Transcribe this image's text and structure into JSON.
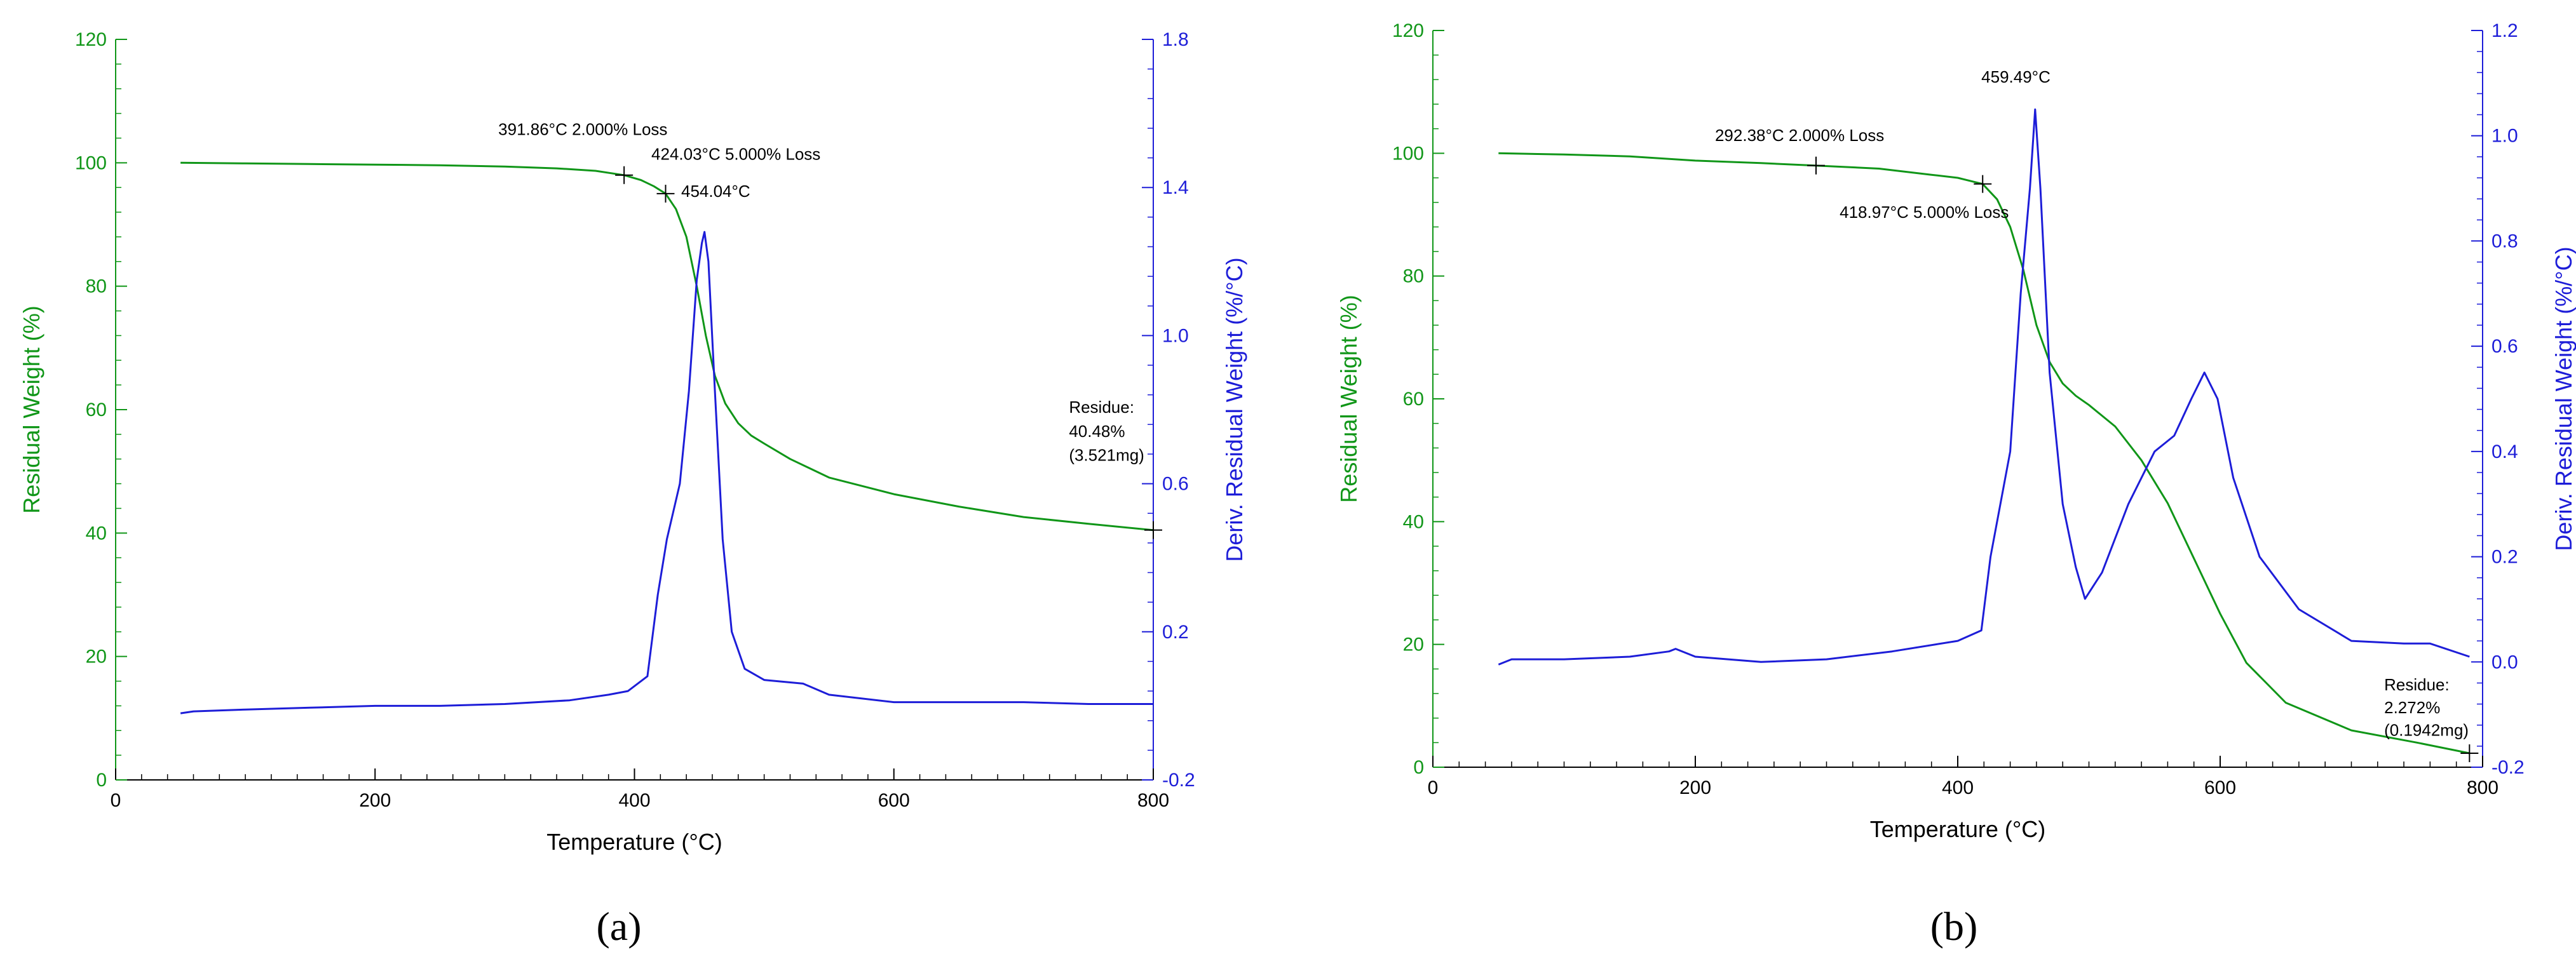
{
  "colors": {
    "weight": "#109618",
    "deriv": "#1d1dd8",
    "axis_text": "#000000"
  },
  "chart_data": [
    {
      "type": "line",
      "panel_label": "(a)",
      "xlabel": "Temperature (°C)",
      "ylabel": "Residual Weight (%)",
      "y2label": "Deriv. Residual Weight (%/°C)",
      "xlim": [
        0,
        800
      ],
      "ylim": [
        0,
        120
      ],
      "y2lim": [
        -0.2,
        1.8
      ],
      "xticks": [
        "0",
        "200",
        "400",
        "600",
        "800"
      ],
      "yticks": [
        "0",
        "20",
        "40",
        "60",
        "80",
        "100",
        "120"
      ],
      "y2ticks": [
        "-0.2",
        "0.2",
        "0.6",
        "1.0",
        "1.4",
        "1.8"
      ],
      "series": [
        {
          "axis": "left",
          "color": "#109618",
          "x": [
            50,
            100,
            150,
            200,
            250,
            300,
            340,
            370,
            392,
            405,
            415,
            424,
            432,
            440,
            448,
            455,
            462,
            470,
            480,
            490,
            500,
            520,
            550,
            600,
            650,
            700,
            750,
            800
          ],
          "y": [
            100,
            99.9,
            99.8,
            99.7,
            99.6,
            99.4,
            99.1,
            98.7,
            98.0,
            97.2,
            96.2,
            95.0,
            92.5,
            88.0,
            80.0,
            72.0,
            65.5,
            61.0,
            57.8,
            55.8,
            54.5,
            52.0,
            49.0,
            46.3,
            44.3,
            42.6,
            41.5,
            40.48
          ]
        },
        {
          "axis": "right",
          "color": "#1d1dd8",
          "x": [
            50,
            60,
            100,
            150,
            200,
            250,
            300,
            350,
            380,
            395,
            410,
            418,
            425,
            435,
            442,
            448,
            452,
            454,
            457,
            462,
            468,
            475,
            485,
            500,
            515,
            530,
            550,
            600,
            650,
            700,
            750,
            800
          ],
          "y": [
            -0.02,
            -0.015,
            -0.01,
            -0.005,
            0.0,
            0.0,
            0.005,
            0.015,
            0.03,
            0.04,
            0.08,
            0.3,
            0.45,
            0.6,
            0.85,
            1.15,
            1.25,
            1.28,
            1.2,
            0.85,
            0.45,
            0.2,
            0.1,
            0.07,
            0.065,
            0.06,
            0.03,
            0.01,
            0.01,
            0.01,
            0.005,
            0.005
          ]
        }
      ],
      "markers": [
        {
          "x": 392,
          "y": 98.0
        },
        {
          "x": 424,
          "y": 95.0
        },
        {
          "x": 800,
          "y": 40.48
        }
      ],
      "annotations": [
        {
          "text": "391.86°C 2.000% Loss",
          "x": 295,
          "y": 104.5,
          "anchor": "start"
        },
        {
          "text": "424.03°C 5.000% Loss",
          "x": 413,
          "y": 100.5,
          "anchor": "start"
        },
        {
          "text": "454.04°C",
          "x": 436,
          "y": 94.5,
          "anchor": "start"
        },
        {
          "text": "Residue:",
          "x": 735,
          "y": 59.5,
          "anchor": "start"
        },
        {
          "text": "40.48%",
          "x": 735,
          "y": 55.6,
          "anchor": "start"
        },
        {
          "text": "(3.521mg)",
          "x": 735,
          "y": 51.7,
          "anchor": "start"
        }
      ]
    },
    {
      "type": "line",
      "panel_label": "(b)",
      "xlabel": "Temperature (°C)",
      "ylabel": "Residual Weight (%)",
      "y2label": "Deriv. Residual Weight (%/°C)",
      "xlim": [
        0,
        800
      ],
      "ylim": [
        0,
        120
      ],
      "y2lim": [
        -0.2,
        1.2
      ],
      "xticks": [
        "0",
        "200",
        "400",
        "600",
        "800"
      ],
      "yticks": [
        "0",
        "20",
        "40",
        "60",
        "80",
        "100",
        "120"
      ],
      "y2ticks": [
        "-0.2",
        "0.0",
        "0.2",
        "0.4",
        "0.6",
        "0.8",
        "1.0",
        "1.2"
      ],
      "series": [
        {
          "axis": "left",
          "color": "#109618",
          "x": [
            50,
            100,
            150,
            200,
            250,
            292,
            340,
            380,
            400,
            419,
            430,
            440,
            450,
            460,
            470,
            480,
            490,
            500,
            520,
            540,
            560,
            580,
            600,
            620,
            650,
            700,
            750,
            790
          ],
          "y": [
            100,
            99.8,
            99.5,
            98.8,
            98.4,
            98.0,
            97.5,
            96.5,
            96.0,
            95.0,
            92.5,
            88.0,
            81.0,
            72.0,
            66.0,
            62.5,
            60.5,
            59.0,
            55.5,
            50.0,
            43.0,
            34.0,
            25.0,
            17.0,
            10.5,
            6.0,
            4.0,
            2.272
          ]
        },
        {
          "axis": "right",
          "color": "#1d1dd8",
          "x": [
            50,
            60,
            100,
            150,
            180,
            185,
            200,
            250,
            300,
            350,
            400,
            418,
            425,
            440,
            448,
            455,
            459,
            463,
            470,
            480,
            490,
            497,
            510,
            530,
            550,
            565,
            578,
            588,
            598,
            610,
            630,
            660,
            700,
            740,
            760,
            790
          ],
          "y": [
            -0.005,
            0.005,
            0.005,
            0.01,
            0.02,
            0.025,
            0.01,
            0.0,
            0.005,
            0.02,
            0.04,
            0.06,
            0.2,
            0.4,
            0.7,
            0.9,
            1.05,
            0.9,
            0.55,
            0.3,
            0.18,
            0.12,
            0.17,
            0.3,
            0.4,
            0.43,
            0.5,
            0.55,
            0.5,
            0.35,
            0.2,
            0.1,
            0.04,
            0.035,
            0.035,
            0.01
          ]
        }
      ],
      "markers": [
        {
          "x": 292,
          "y": 98.0
        },
        {
          "x": 419,
          "y": 95.0
        },
        {
          "x": 790,
          "y": 2.272
        }
      ],
      "annotations": [
        {
          "text": "292.38°C 2.000% Loss",
          "x": 215,
          "y": 102.0,
          "anchor": "start"
        },
        {
          "text": "459.49°C",
          "x": 418,
          "y": 111.5,
          "anchor": "start"
        },
        {
          "text": "418.97°C 5.000% Loss",
          "x": 310,
          "y": 89.5,
          "anchor": "start"
        },
        {
          "text": "Residue:",
          "x": 725,
          "y": 12.5,
          "anchor": "start"
        },
        {
          "text": "2.272%",
          "x": 725,
          "y": 8.8,
          "anchor": "start"
        },
        {
          "text": "(0.1942mg)",
          "x": 725,
          "y": 5.1,
          "anchor": "start"
        }
      ]
    }
  ]
}
